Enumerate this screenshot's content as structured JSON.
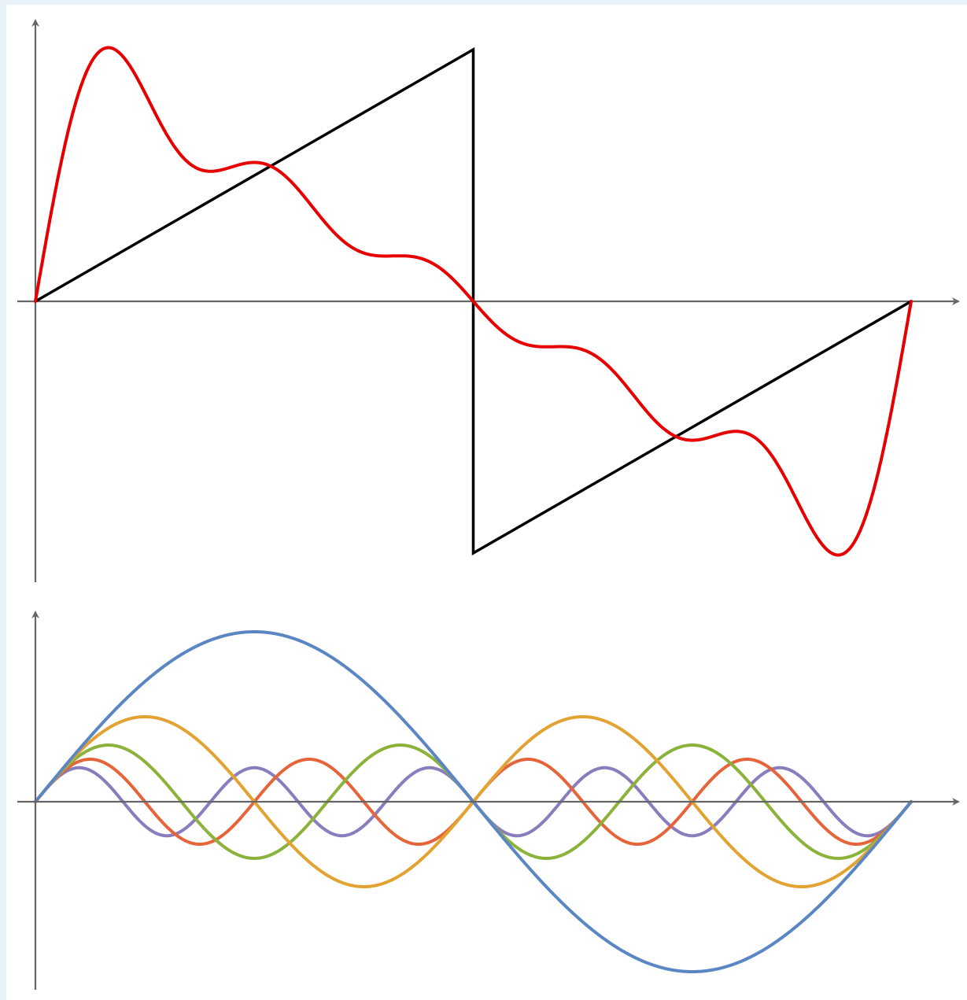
{
  "colors": {
    "background": "#e8f2f9",
    "panel": "#ffffff",
    "axis": "#666666",
    "target": "#000000",
    "approximation": "#e60000",
    "harmonics": [
      "#5a87c4",
      "#e3a332",
      "#8bb23a",
      "#e6643a",
      "#8a7cbd"
    ]
  },
  "chart_data": [
    {
      "type": "line",
      "title": "",
      "xlabel": "",
      "ylabel": "",
      "xlim": [
        0,
        2
      ],
      "ylim": [
        -1.12,
        1.12
      ],
      "grid": false,
      "legend": "none",
      "target": {
        "color": "#000000",
        "x": [
          0,
          1,
          1,
          2
        ],
        "y": [
          0,
          1,
          -1,
          0
        ]
      },
      "approximation": {
        "color": "#e60000",
        "terms": 5
      }
    },
    {
      "type": "line",
      "title": "",
      "xlabel": "",
      "ylabel": "",
      "xlim": [
        0,
        2
      ],
      "ylim": [
        -0.7,
        0.7
      ],
      "grid": false,
      "legend": "none",
      "series": [
        {
          "harmonic": 1,
          "amplitude": 0.6366,
          "color": "#5a87c4"
        },
        {
          "harmonic": 2,
          "amplitude": 0.3183,
          "color": "#e3a332"
        },
        {
          "harmonic": 3,
          "amplitude": 0.2122,
          "color": "#8bb23a"
        },
        {
          "harmonic": 4,
          "amplitude": 0.1592,
          "color": "#e6643a"
        },
        {
          "harmonic": 5,
          "amplitude": 0.1273,
          "color": "#8a7cbd"
        }
      ]
    }
  ]
}
